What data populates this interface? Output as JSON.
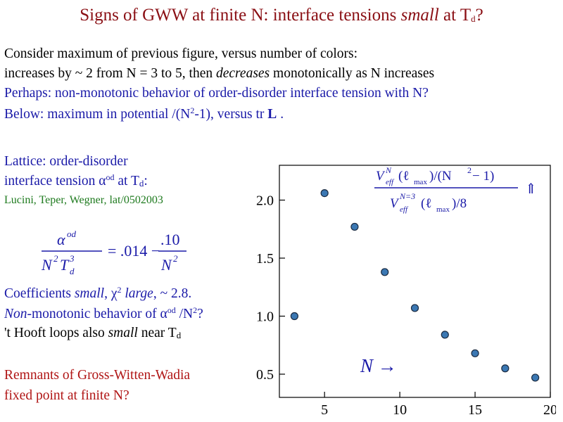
{
  "title": {
    "main": "Signs of GWW at finite N: interface tensions ",
    "em": "small",
    "mid": " at T",
    "sub": "d",
    "end": "?"
  },
  "lines": {
    "l1": "Consider maximum of previous figure, versus number of colors:",
    "l2_a": "increases by ~ 2 from N = 3 to 5, then ",
    "l2_em": "decreases",
    "l2_b": " monotonically as N increases",
    "l3": "Perhaps: non-monotonic behavior of order-disorder interface tension with N?",
    "l4_a": "Below: maximum in potential /(N",
    "l4_sup": "2",
    "l4_b": "-1), versus tr ",
    "l4_bold": "L",
    "l4_c": " ."
  },
  "lattice": {
    "line1": "Lattice: order-disorder",
    "line2_a": "interface tension α",
    "line2_sup": "od",
    "line2_b": " at T",
    "line2_sub": "d",
    "line2_c": ":",
    "citation": "Lucini, Teper, Wegner, lat/0502003"
  },
  "formula": {
    "lhs_num": "α",
    "lhs_num_sup": "od",
    "lhs_den": "N",
    "lhs_den_sup": "2",
    "lhs_den_t": "T",
    "lhs_den_t_sup": "3",
    "lhs_den_t_sub": "d",
    "equals": "= .014 −",
    "rhs_num": ".10",
    "rhs_den": "N",
    "rhs_den_sup": "2"
  },
  "coefficients": {
    "c1_a": "Coefficients ",
    "c1_em1": "small",
    "c1_b": ", χ",
    "c1_sup": "2",
    "c1_em2": " large",
    "c1_c": ", ~ 2.8.",
    "c2_em": "Non",
    "c2_a": "-monotonic behavior of α",
    "c2_sup1": "od",
    "c2_b": " /N",
    "c2_sup2": "2",
    "c2_c": "?",
    "c3_a": "'t Hooft loops also ",
    "c3_em": "small",
    "c3_b": " near T",
    "c3_sub": "d"
  },
  "remnants": {
    "line1": "Remnants of Gross-Witten-Wadia",
    "line2": "fixed point at finite N?"
  },
  "chart_data": {
    "type": "scatter",
    "x": [
      3,
      5,
      7,
      9,
      11,
      13,
      15,
      17,
      19
    ],
    "y": [
      1.0,
      2.06,
      1.77,
      1.38,
      1.07,
      0.84,
      0.68,
      0.55,
      0.47
    ],
    "xlim": [
      2,
      20
    ],
    "ylim": [
      0.3,
      2.3
    ],
    "x_ticks": [
      5,
      10,
      15,
      20
    ],
    "y_ticks": [
      0.5,
      1.0,
      1.5,
      2.0
    ],
    "x_tick_labels": [
      "5",
      "10",
      "15",
      "20"
    ],
    "y_tick_labels": [
      "0.5",
      "1.0",
      "1.5",
      "2.0"
    ],
    "legend_num_a": "V",
    "legend_num_sup": "N",
    "legend_num_sub": "eff",
    "legend_num_b": "(ℓ",
    "legend_num_sub2": "max",
    "legend_num_c": ")/(N",
    "legend_num_sup2": "2",
    "legend_num_d": " − 1)",
    "legend_den_a": "V",
    "legend_den_sup": "N=3",
    "legend_den_sub": "eff",
    "legend_den_b": "(ℓ",
    "legend_den_sub2": "max",
    "legend_den_c": ")/8",
    "legend_arrow": "⇑",
    "annotation": "N →",
    "grid": false,
    "colors": {
      "marker": "#3b78b3",
      "annotation": "#1a1aa8",
      "axis": "#000000"
    }
  },
  "colors": {
    "title": "#8a0f14",
    "blue": "#1a1aa8",
    "green": "#1e7a1e",
    "red": "#b01515"
  }
}
